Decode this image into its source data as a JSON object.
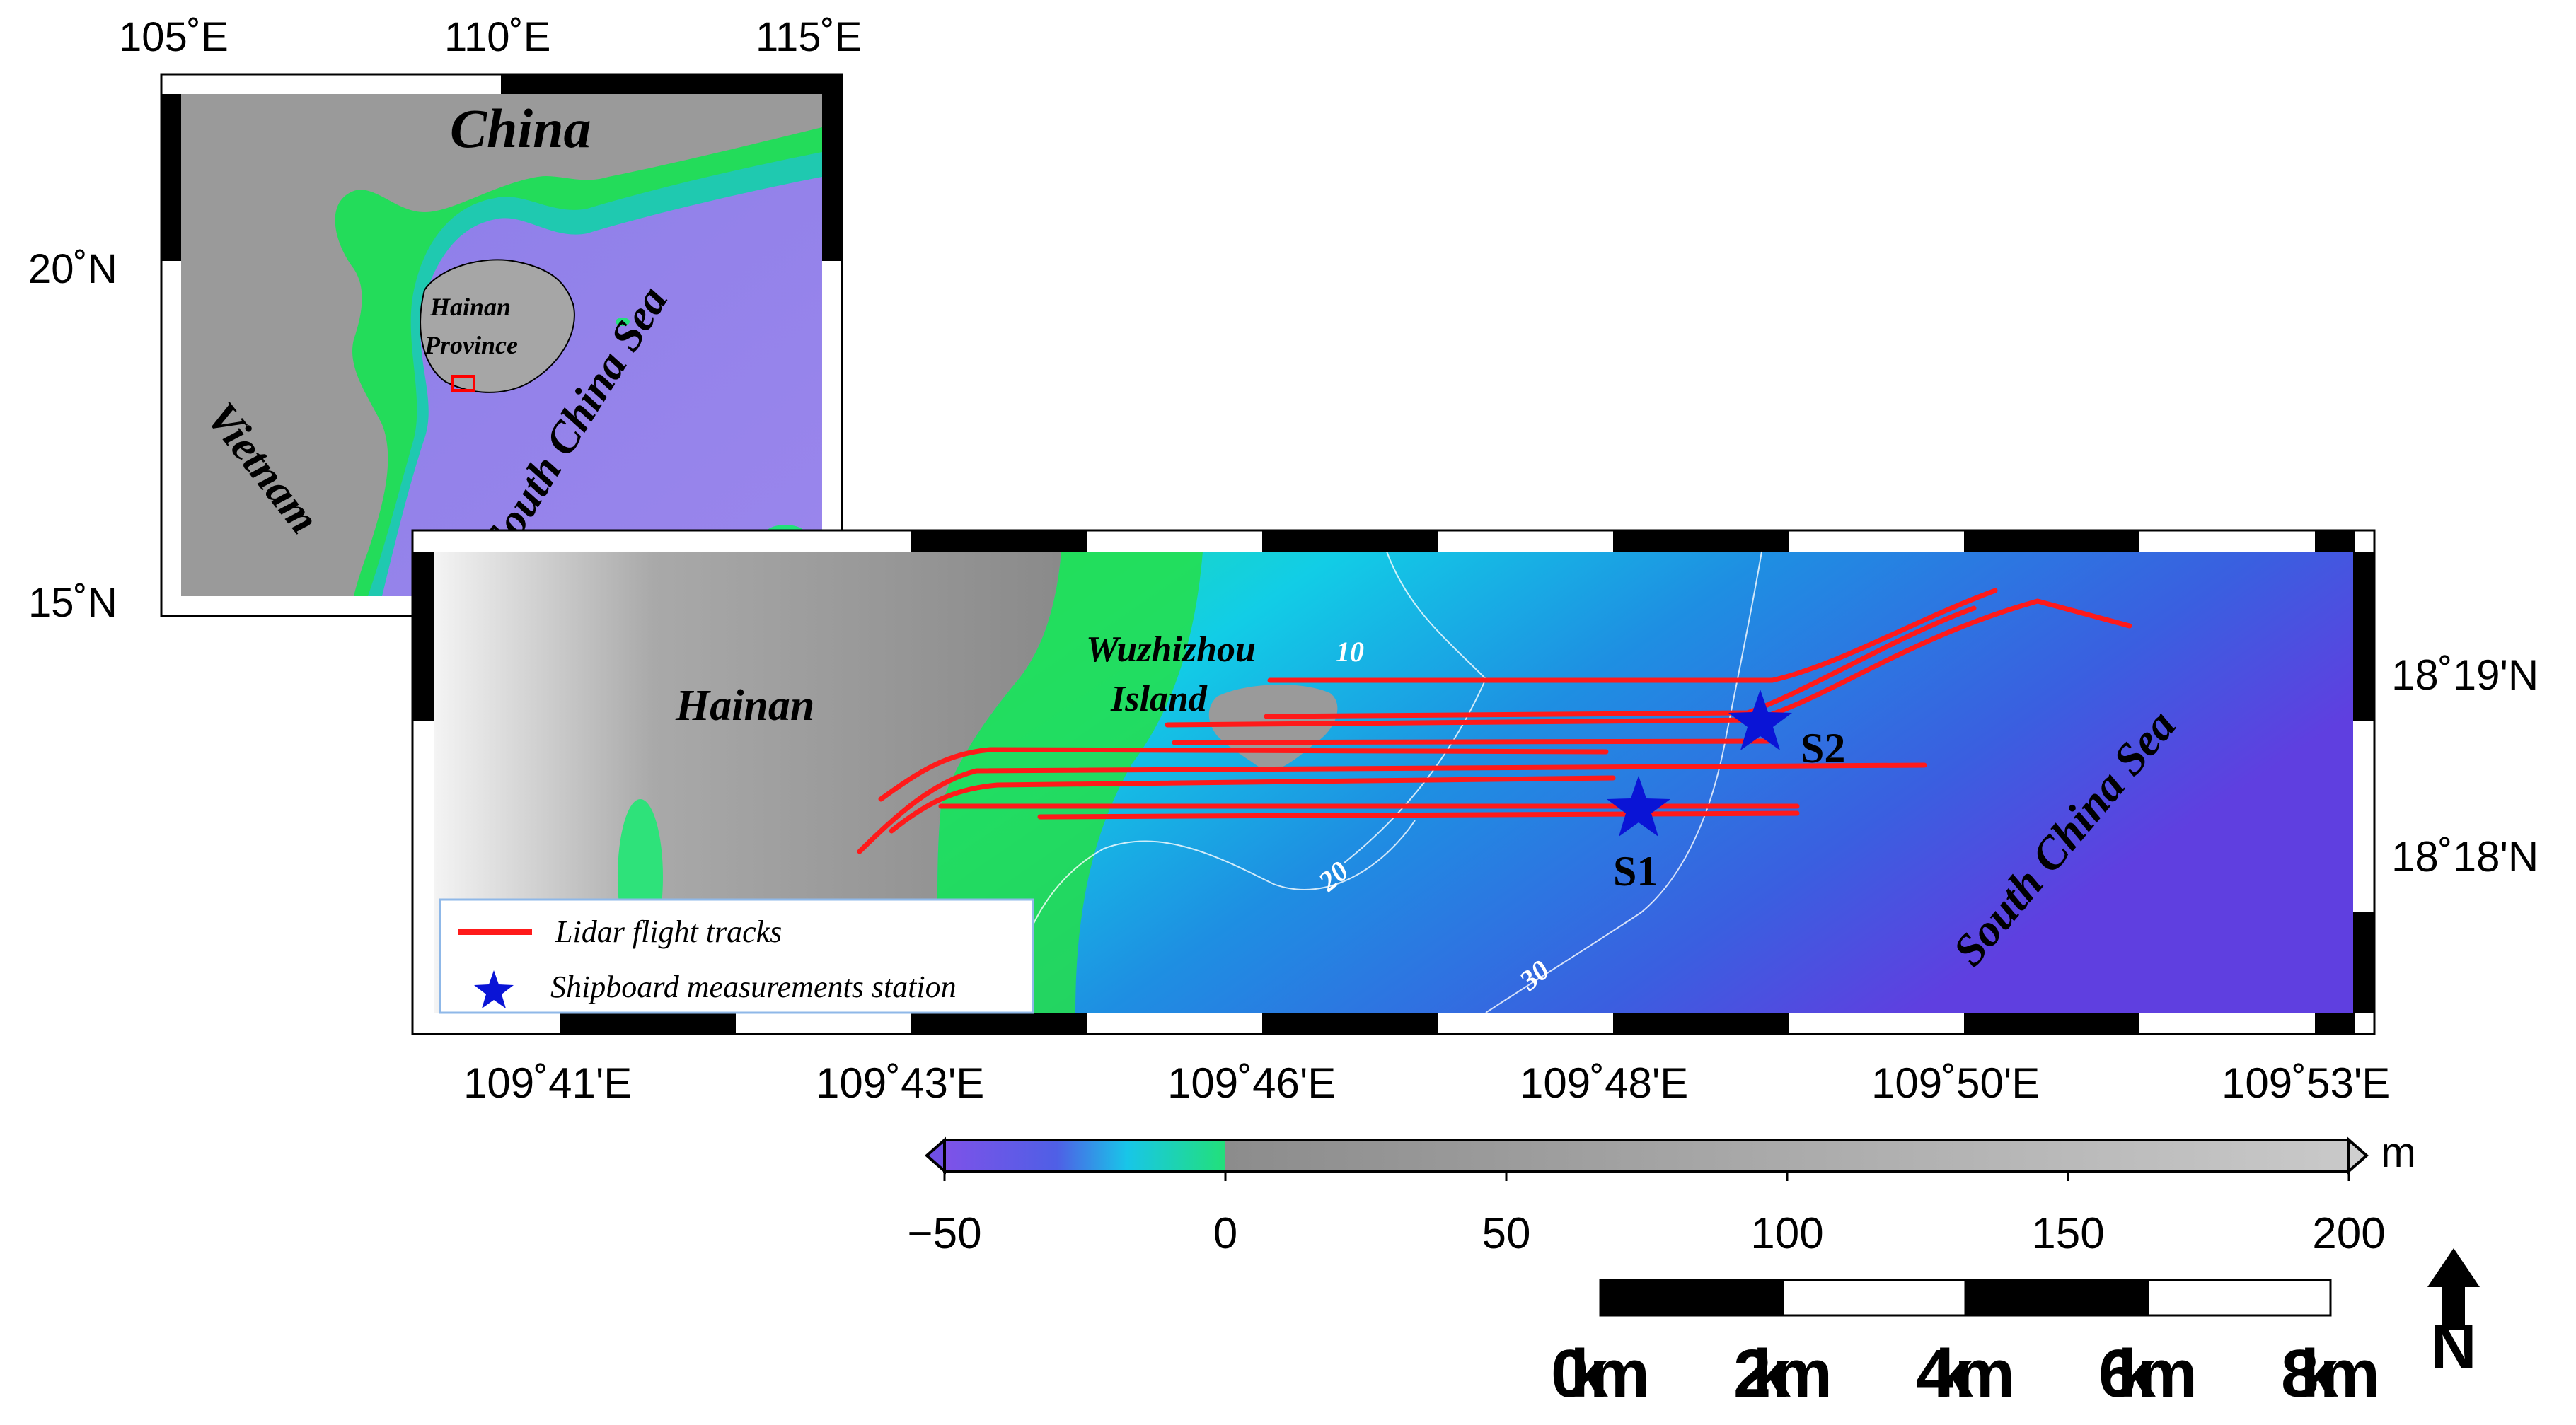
{
  "inset_map": {
    "lon_ticks": [
      "105˚E",
      "110˚E",
      "115˚E"
    ],
    "lat_ticks": [
      "20˚N",
      "15˚N"
    ],
    "labels": {
      "china": "China",
      "vietnam": "Vietnam",
      "hainan_line1": "Hainan",
      "hainan_line2": "Province",
      "south_china_sea": "South China Sea"
    },
    "study_area_box_color": "#ff0000"
  },
  "main_map": {
    "lon_ticks": [
      "109˚41'E",
      "109˚43'E",
      "109˚46'E",
      "109˚48'E",
      "109˚50'E",
      "109˚53'E"
    ],
    "lat_ticks": [
      "18˚19'N",
      "18˚18'N"
    ],
    "labels": {
      "hainan": "Hainan",
      "wuzhizhou_line1": "Wuzhizhou",
      "wuzhizhou_line2": "Island",
      "south_china_sea": "South China Sea"
    },
    "contours": [
      "10",
      "20",
      "30"
    ],
    "stations": [
      {
        "id": "S1",
        "label": "S1"
      },
      {
        "id": "S2",
        "label": "S2"
      }
    ],
    "track_color": "#ff1a1a",
    "station_color": "#0a14d6"
  },
  "legend": {
    "tracks_label": "Lidar flight tracks",
    "station_label": "Shipboard measurements station"
  },
  "colorbar": {
    "unit": "m",
    "ticks": [
      "−50",
      "0",
      "50",
      "100",
      "150",
      "200"
    ],
    "colors": {
      "deep": "#6f4fe6",
      "mid": "#18c6e8",
      "shallow": "#23e060",
      "land_low": "#8c8c8c",
      "land_high": "#cfcfcf"
    }
  },
  "scale_bar": {
    "ticks": [
      "0km",
      "2km",
      "4km",
      "6km",
      "8km"
    ]
  },
  "north_arrow": {
    "label": "N"
  }
}
